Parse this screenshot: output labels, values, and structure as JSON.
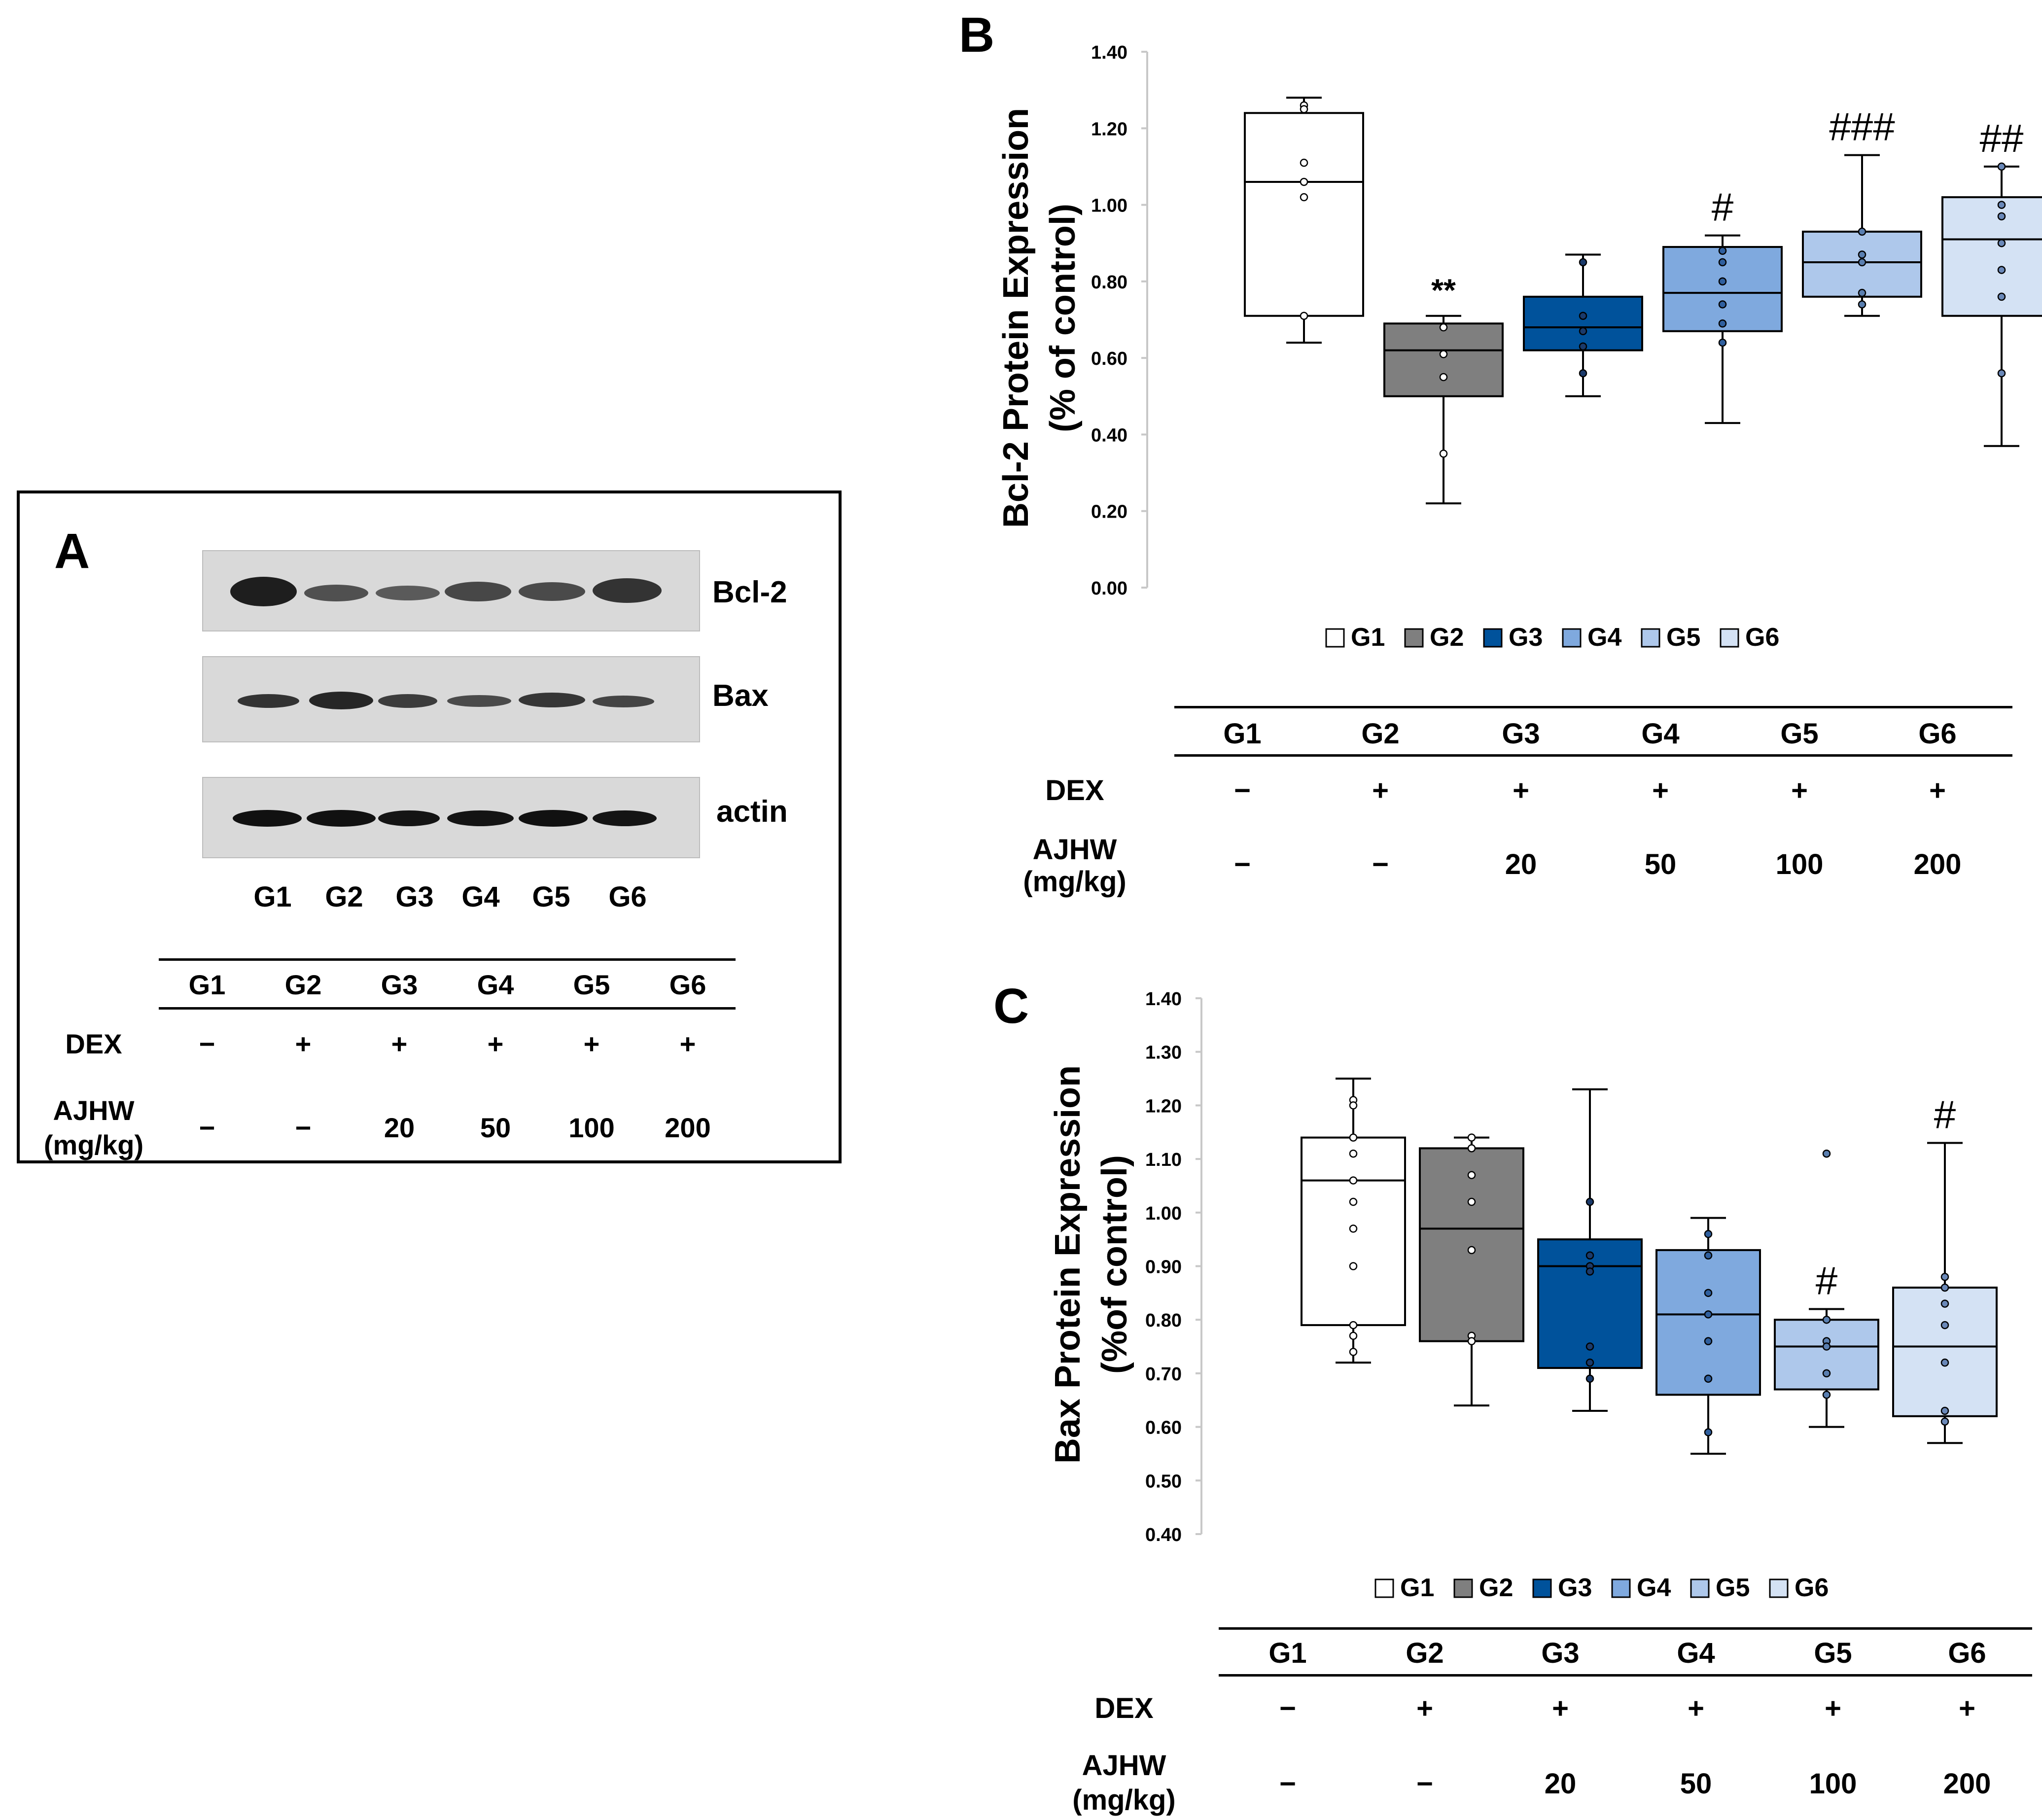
{
  "panels": {
    "a": {
      "letter": "A"
    },
    "b": {
      "letter": "B"
    },
    "c": {
      "letter": "C"
    }
  },
  "blot": {
    "proteins": [
      "Bcl-2",
      "Bax",
      "actin"
    ],
    "lanes": [
      "G1",
      "G2",
      "G3",
      "G4",
      "G5",
      "G6"
    ]
  },
  "treatment_table": {
    "groups": [
      "G1",
      "G2",
      "G3",
      "G4",
      "G5",
      "G6"
    ],
    "dex_label": "DEX",
    "dex": [
      "−",
      "+",
      "+",
      "+",
      "+",
      "+"
    ],
    "ajhw_label_line1": "AJHW",
    "ajhw_label_line2": "(mg/kg)",
    "ajhw": [
      "−",
      "−",
      "20",
      "50",
      "100",
      "200"
    ]
  },
  "colors": {
    "G1": "#ffffff",
    "G2": "#7f7f7f",
    "G3": "#00529b",
    "G4": "#7fa9de",
    "G5": "#aec8eb",
    "G6": "#d4e2f4"
  },
  "chart_data": [
    {
      "id": "B",
      "type": "box",
      "ylabel_line1": "Bcl-2 Protein Expression",
      "ylabel_line2": "(% of control)",
      "ylim": [
        0,
        1.4
      ],
      "yticks": [
        "0.00",
        "0.20",
        "0.40",
        "0.60",
        "0.80",
        "1.00",
        "1.20",
        "1.40"
      ],
      "legend": [
        "G1",
        "G2",
        "G3",
        "G4",
        "G5",
        "G6"
      ],
      "groups": [
        {
          "name": "G1",
          "min": 0.64,
          "q1": 0.71,
          "median": 1.06,
          "q3": 1.24,
          "max": 1.28,
          "points": [
            1.26,
            1.25,
            1.11,
            1.06,
            1.02,
            0.71
          ],
          "annotation": ""
        },
        {
          "name": "G2",
          "min": 0.22,
          "q1": 0.5,
          "median": 0.62,
          "q3": 0.69,
          "max": 0.71,
          "points": [
            0.68,
            0.61,
            0.55,
            0.35
          ],
          "annotation": "**"
        },
        {
          "name": "G3",
          "min": 0.5,
          "q1": 0.62,
          "median": 0.68,
          "q3": 0.76,
          "max": 0.87,
          "points": [
            0.85,
            0.71,
            0.67,
            0.63,
            0.56
          ],
          "annotation": ""
        },
        {
          "name": "G4",
          "min": 0.43,
          "q1": 0.67,
          "median": 0.77,
          "q3": 0.89,
          "max": 0.92,
          "points": [
            0.88,
            0.85,
            0.8,
            0.74,
            0.69,
            0.64
          ],
          "annotation": "#"
        },
        {
          "name": "G5",
          "min": 0.71,
          "q1": 0.76,
          "median": 0.85,
          "q3": 0.93,
          "max": 1.13,
          "points": [
            0.93,
            0.87,
            0.85,
            0.77,
            0.74
          ],
          "annotation": "###"
        },
        {
          "name": "G6",
          "min": 0.37,
          "q1": 0.71,
          "median": 0.91,
          "q3": 1.02,
          "max": 1.1,
          "points": [
            1.1,
            1.0,
            0.97,
            0.9,
            0.83,
            0.76,
            0.56
          ],
          "annotation": "##"
        }
      ]
    },
    {
      "id": "C",
      "type": "box",
      "ylabel_line1": "Bax Protein Expression",
      "ylabel_line2": "(%of control)",
      "ylim": [
        0.4,
        1.4
      ],
      "yticks": [
        "0.40",
        "0.50",
        "0.60",
        "0.70",
        "0.80",
        "0.90",
        "1.00",
        "1.10",
        "1.20",
        "1.30",
        "1.40"
      ],
      "legend": [
        "G1",
        "G2",
        "G3",
        "G4",
        "G5",
        "G6"
      ],
      "groups": [
        {
          "name": "G1",
          "min": 0.72,
          "q1": 0.79,
          "median": 1.06,
          "q3": 1.14,
          "max": 1.25,
          "points": [
            1.21,
            1.2,
            1.14,
            1.11,
            1.06,
            1.02,
            0.97,
            0.9,
            0.79,
            0.77,
            0.74
          ],
          "annotation": ""
        },
        {
          "name": "G2",
          "min": 0.64,
          "q1": 0.76,
          "median": 0.97,
          "q3": 1.12,
          "max": 1.14,
          "points": [
            1.14,
            1.12,
            1.07,
            1.02,
            0.93,
            0.77,
            0.76
          ],
          "annotation": ""
        },
        {
          "name": "G3",
          "min": 0.63,
          "q1": 0.71,
          "median": 0.9,
          "q3": 0.95,
          "max": 1.23,
          "points": [
            1.02,
            0.92,
            0.9,
            0.89,
            0.75,
            0.72,
            0.69
          ],
          "annotation": ""
        },
        {
          "name": "G4",
          "min": 0.55,
          "q1": 0.66,
          "median": 0.81,
          "q3": 0.93,
          "max": 0.99,
          "points": [
            0.96,
            0.92,
            0.85,
            0.81,
            0.76,
            0.69,
            0.59
          ],
          "annotation": ""
        },
        {
          "name": "G5",
          "min": 0.6,
          "q1": 0.67,
          "median": 0.75,
          "q3": 0.8,
          "max": 0.82,
          "points": [
            1.11,
            0.8,
            0.76,
            0.75,
            0.7,
            0.66
          ],
          "annotation": "#"
        },
        {
          "name": "G6",
          "min": 0.57,
          "q1": 0.62,
          "median": 0.75,
          "q3": 0.86,
          "max": 1.13,
          "points": [
            0.88,
            0.86,
            0.83,
            0.79,
            0.72,
            0.63,
            0.61
          ],
          "annotation": "#"
        }
      ]
    }
  ]
}
